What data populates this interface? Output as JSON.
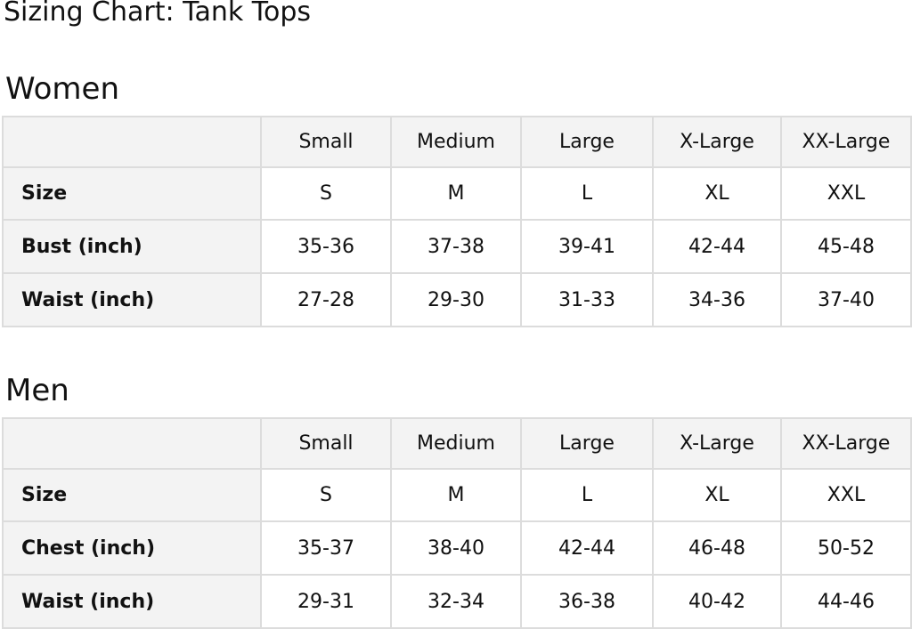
{
  "title": "Sizing Chart: Tank Tops",
  "tables": [
    {
      "heading": "Women",
      "columns": [
        "",
        "Small",
        "Medium",
        "Large",
        "X-Large",
        "XX-Large"
      ],
      "rows": [
        {
          "label": "Size",
          "values": [
            "S",
            "M",
            "L",
            "XL",
            "XXL"
          ]
        },
        {
          "label": "Bust (inch)",
          "values": [
            "35-36",
            "37-38",
            "39-41",
            "42-44",
            "45-48"
          ]
        },
        {
          "label": "Waist (inch)",
          "values": [
            "27-28",
            "29-30",
            "31-33",
            "34-36",
            "37-40"
          ]
        }
      ]
    },
    {
      "heading": "Men",
      "columns": [
        "",
        "Small",
        "Medium",
        "Large",
        "X-Large",
        "XX-Large"
      ],
      "rows": [
        {
          "label": "Size",
          "values": [
            "S",
            "M",
            "L",
            "XL",
            "XXL"
          ]
        },
        {
          "label": "Chest (inch)",
          "values": [
            "35-37",
            "38-40",
            "42-44",
            "46-48",
            "50-52"
          ]
        },
        {
          "label": "Waist (inch)",
          "values": [
            "29-31",
            "32-34",
            "36-38",
            "40-42",
            "44-46"
          ]
        }
      ]
    }
  ]
}
